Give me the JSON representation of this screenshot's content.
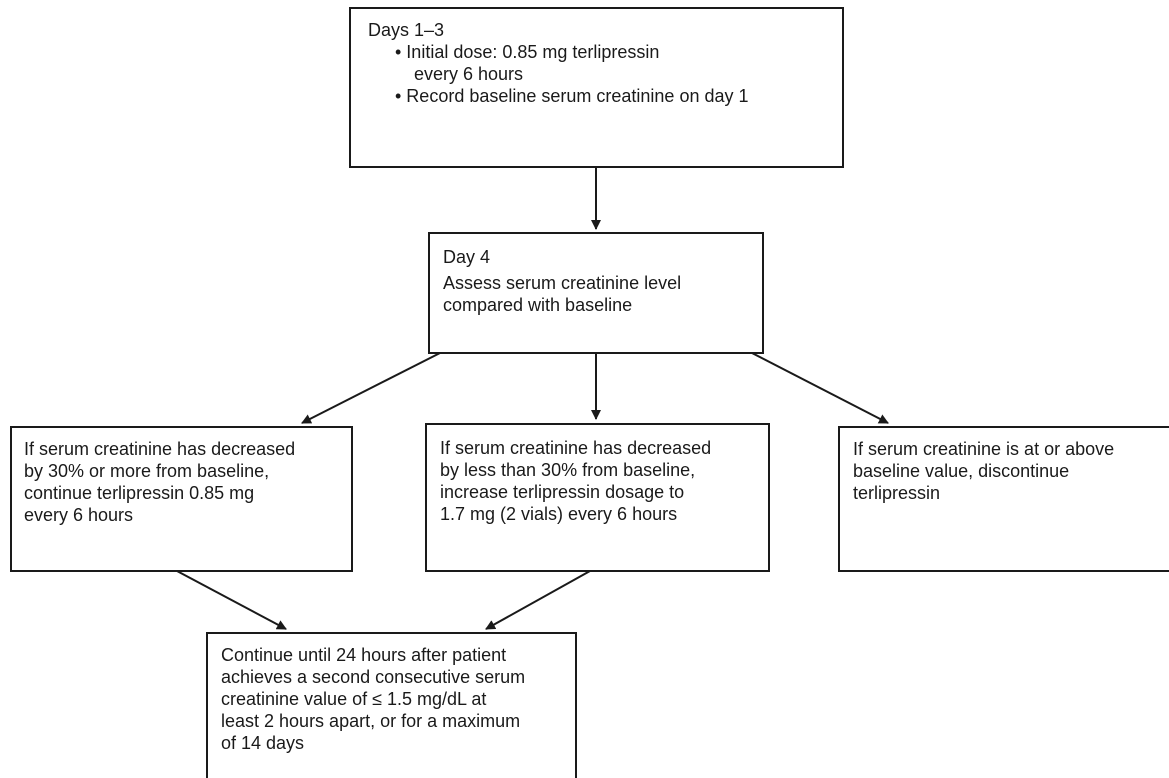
{
  "box_days_1_3": {
    "heading": "Days 1–3",
    "bullet_1_line_1": "• Initial dose: 0.85 mg terlipressin",
    "bullet_1_line_2": "every 6  hours",
    "bullet_2": "• Record baseline serum creatinine on day 1"
  },
  "box_day_4": {
    "heading": "Day 4",
    "line_1": "Assess serum creatinine level",
    "line_2": "compared with baseline"
  },
  "box_decreased_30_or_more": {
    "line_1": "If serum creatinine has decreased",
    "line_2": "by 30% or more from baseline,",
    "line_3": "continue terlipressin 0.85 mg",
    "line_4": "every 6 hours"
  },
  "box_decreased_less_than_30": {
    "line_1": "If serum creatinine has decreased",
    "line_2": "by less than 30% from baseline,",
    "line_3": "increase terlipressin dosage to",
    "line_4": "1.7 mg (2 vials) every 6 hours"
  },
  "box_at_or_above_baseline": {
    "line_1": "If serum creatinine is at or above",
    "line_2": "baseline value, discontinue",
    "line_3": "terlipressin"
  },
  "box_continue": {
    "line_1": "Continue until 24 hours after patient",
    "line_2": "achieves a second consecutive serum",
    "line_3": "creatinine value of ≤ 1.5 mg/dL at",
    "line_4": "least 2 hours apart, or for a maximum",
    "line_5": "of 14 days"
  }
}
